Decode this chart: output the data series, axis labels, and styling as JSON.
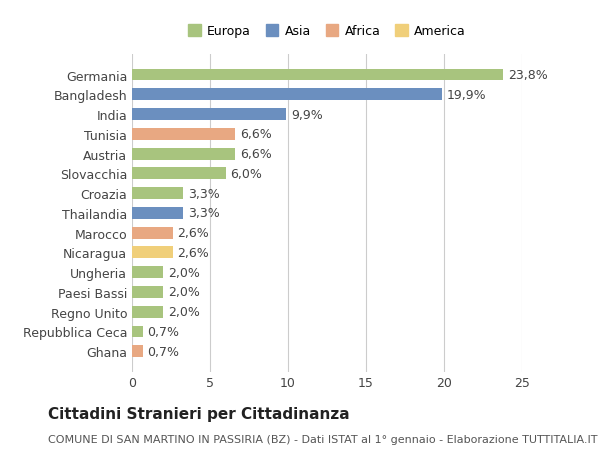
{
  "categories": [
    "Germania",
    "Bangladesh",
    "India",
    "Tunisia",
    "Austria",
    "Slovacchia",
    "Croazia",
    "Thailandia",
    "Marocco",
    "Nicaragua",
    "Ungheria",
    "Paesi Bassi",
    "Regno Unito",
    "Repubblica Ceca",
    "Ghana"
  ],
  "values": [
    23.8,
    19.9,
    9.9,
    6.6,
    6.6,
    6.0,
    3.3,
    3.3,
    2.6,
    2.6,
    2.0,
    2.0,
    2.0,
    0.7,
    0.7
  ],
  "labels": [
    "23,8%",
    "19,9%",
    "9,9%",
    "6,6%",
    "6,6%",
    "6,0%",
    "3,3%",
    "3,3%",
    "2,6%",
    "2,6%",
    "2,0%",
    "2,0%",
    "2,0%",
    "0,7%",
    "0,7%"
  ],
  "continents": [
    "Europa",
    "Asia",
    "Asia",
    "Africa",
    "Europa",
    "Europa",
    "Europa",
    "Asia",
    "Africa",
    "America",
    "Europa",
    "Europa",
    "Europa",
    "Europa",
    "Africa"
  ],
  "continent_colors": {
    "Europa": "#a8c47e",
    "Asia": "#6b8fbf",
    "Africa": "#e8a882",
    "America": "#f0cf7a"
  },
  "legend_order": [
    "Europa",
    "Asia",
    "Africa",
    "America"
  ],
  "title": "Cittadini Stranieri per Cittadinanza",
  "subtitle": "COMUNE DI SAN MARTINO IN PASSIRIA (BZ) - Dati ISTAT al 1° gennaio - Elaborazione TUTTITALIA.IT",
  "xlim": [
    0,
    25
  ],
  "xticks": [
    0,
    5,
    10,
    15,
    20,
    25
  ],
  "bg_color": "#ffffff",
  "grid_color": "#cccccc",
  "bar_height": 0.6,
  "label_fontsize": 9,
  "tick_fontsize": 9,
  "title_fontsize": 11,
  "subtitle_fontsize": 8
}
